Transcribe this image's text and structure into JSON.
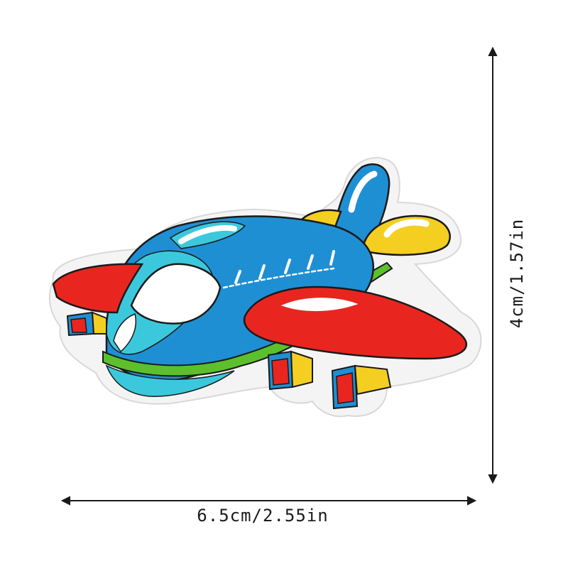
{
  "product": {
    "image_alt": "embroidered airplane patch",
    "colors": {
      "felt_border": "#f4f4f4",
      "fuselage_blue": "#1f8fd3",
      "light_blue": "#3cc8dc",
      "wing_red": "#e8261f",
      "accent_yellow": "#f4cf21",
      "stripe_green": "#5cc02c",
      "window_white": "#ffffff",
      "outline": "#1a1a1a"
    }
  },
  "dimensions": {
    "width_label": "6.5cm/2.55in",
    "height_label": "4cm/1.57in"
  }
}
